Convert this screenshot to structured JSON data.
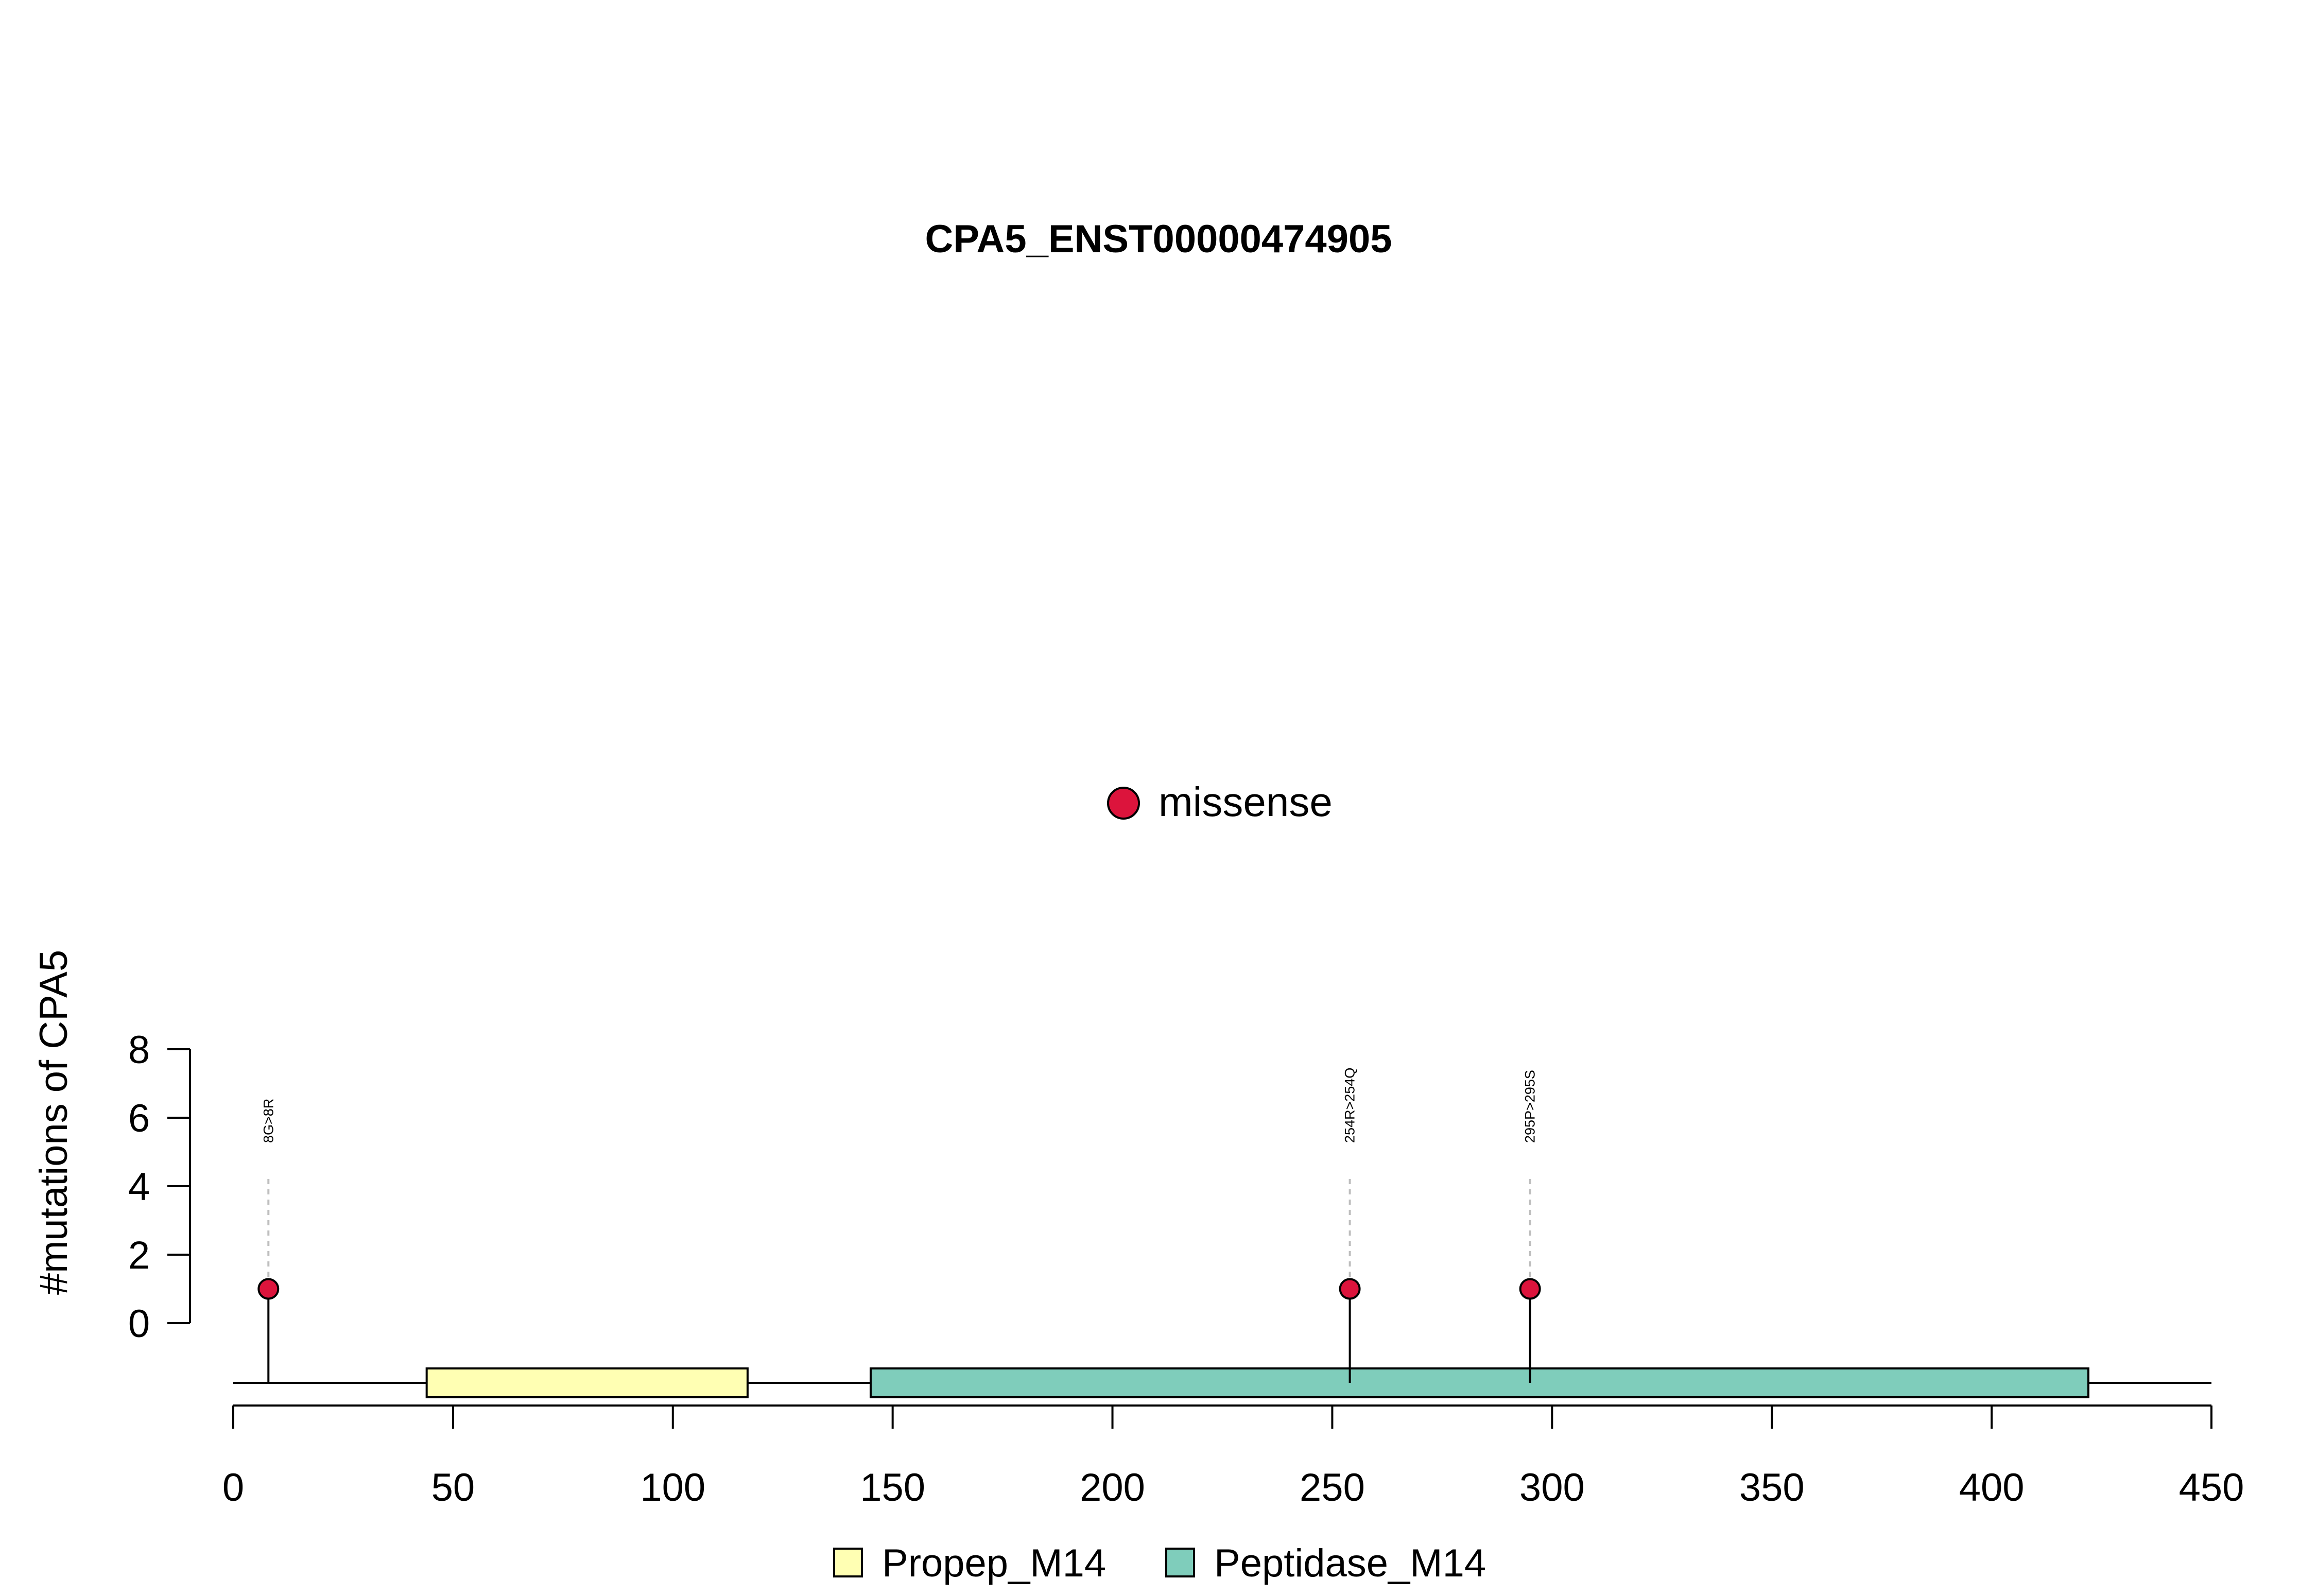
{
  "chart_data": {
    "type": "lollipop",
    "title": "CPA5_ENST00000474905",
    "ylabel": "#mutations of CPA5",
    "xlim": [
      0,
      450
    ],
    "x_ticks": [
      0,
      50,
      100,
      150,
      200,
      250,
      300,
      350,
      400,
      450
    ],
    "y_ticks": [
      0,
      2,
      4,
      6,
      8
    ],
    "mutation_legend": [
      {
        "label": "missense",
        "color": "#DC143C"
      }
    ],
    "mutations": [
      {
        "position": 8,
        "label": "8G>8R",
        "count": 1,
        "type": "missense"
      },
      {
        "position": 254,
        "label": "254R>254Q",
        "count": 1,
        "type": "missense"
      },
      {
        "position": 295,
        "label": "295P>295S",
        "count": 1,
        "type": "missense"
      }
    ],
    "domains": [
      {
        "name": "Propep_M14",
        "start": 44,
        "end": 117,
        "color": "#FFFFB3"
      },
      {
        "name": "Peptidase_M14",
        "start": 145,
        "end": 422,
        "color": "#7FCDBB"
      }
    ]
  }
}
